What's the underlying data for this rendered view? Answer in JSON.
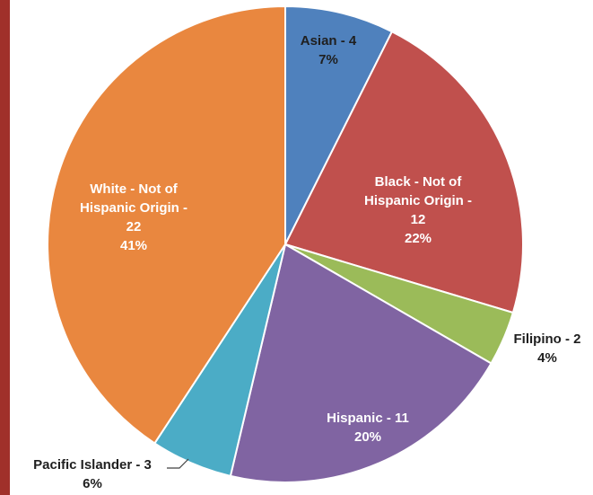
{
  "page": {
    "left_bar_color": "#A0302A"
  },
  "chart_data": {
    "type": "pie",
    "title": "",
    "start_angle_deg": 0,
    "direction": "clockwise",
    "slices": [
      {
        "name": "Asian",
        "value": 4,
        "percent": "7%",
        "color": "#4F81BD",
        "label_lines": [
          "Asian - 4",
          "7%"
        ],
        "label_color": "#1F1F1F",
        "leader_line": false
      },
      {
        "name": "Black - Not of Hispanic Origin",
        "value": 12,
        "percent": "22%",
        "color": "#C0504D",
        "label_lines": [
          "Black - Not of",
          "Hispanic Origin -",
          "12",
          "22%"
        ],
        "label_color": "#FFFFFF",
        "leader_line": false
      },
      {
        "name": "Filipino",
        "value": 2,
        "percent": "4%",
        "color": "#9BBB59",
        "label_lines": [
          "Filipino - 2",
          "4%"
        ],
        "label_color": "#1F1F1F",
        "leader_line": false
      },
      {
        "name": "Hispanic",
        "value": 11,
        "percent": "20%",
        "color": "#8064A2",
        "label_lines": [
          "Hispanic - 11",
          "20%"
        ],
        "label_color": "#FFFFFF",
        "leader_line": false
      },
      {
        "name": "Pacific Islander",
        "value": 3,
        "percent": "6%",
        "color": "#4BACC6",
        "label_lines": [
          "Pacific Islander - 3",
          "6%"
        ],
        "label_color": "#1F1F1F",
        "leader_line": true
      },
      {
        "name": "White - Not of Hispanic Origin",
        "value": 22,
        "percent": "41%",
        "color": "#E9873F",
        "label_lines": [
          "White - Not of",
          "Hispanic Origin -",
          "22",
          "41%"
        ],
        "label_color": "#FFFFFF",
        "leader_line": false
      }
    ]
  }
}
